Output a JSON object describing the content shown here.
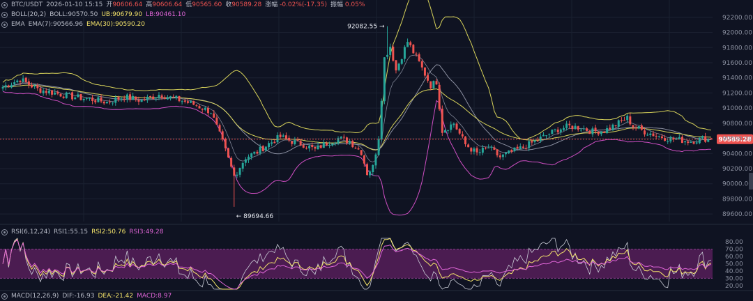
{
  "header": {
    "symbol": "BTC/USDT",
    "datetime": "2026-01-10 15:15",
    "open_label": "开",
    "open": "90606.64",
    "high_label": "高",
    "high": "90606.64",
    "low_label": "低",
    "low": "90565.60",
    "close_label": "收",
    "close": "90589.28",
    "change_label": "涨幅",
    "change": "-0.02%(-17.35)",
    "amp_label": "振幅",
    "amp": "0.05%"
  },
  "boll": {
    "name": "BOLL(20,2)",
    "mid": "BOLL:90570.50",
    "ub": "UB:90679.90",
    "lb": "LB:90461.10"
  },
  "ema": {
    "name": "EMA",
    "ema7": "EMA(7):90566.96",
    "ema30": "EMA(30):90590.20"
  },
  "rsi": {
    "name": "RSI(6,12,24)",
    "rsi1": "RSI1:55.15",
    "rsi2": "RSI2:50.76",
    "rsi3": "RSI3:49.28"
  },
  "macd": {
    "name": "MACD(12,26,9)",
    "dif": "DIF:-16.93",
    "dea": "DEA:-21.42",
    "macd": "MACD:8.97"
  },
  "colors": {
    "background": "#0f1322",
    "bull": "#26a69a",
    "bear": "#ef5350",
    "boll_band": "#d8d35a",
    "boll_lower": "#d04fc4",
    "ema_line": "#9aa0b2",
    "rsi_band": "#5a1f5e",
    "price_tag": "#ef5350"
  },
  "chart_data": [
    {
      "type": "candlestick",
      "title": "BTC/USDT",
      "ylim": [
        89500,
        92300
      ],
      "y_ticks": [
        "92200.00",
        "92000.00",
        "91800.00",
        "91600.00",
        "91400.00",
        "91200.00",
        "91000.00",
        "90800.00",
        "90600.00",
        "90400.00",
        "90200.00",
        "90000.00",
        "89800.00",
        "89600.00"
      ],
      "last_price": "90589.28",
      "annotations": [
        {
          "text": "92082.55 →",
          "price": 92082.55
        },
        {
          "text": "← 89694.66",
          "price": 89694.66
        }
      ],
      "anchors": [
        [
          0,
          91280
        ],
        [
          6,
          91380
        ],
        [
          12,
          91250
        ],
        [
          18,
          91200
        ],
        [
          24,
          91150
        ],
        [
          30,
          91120
        ],
        [
          36,
          91080
        ],
        [
          42,
          91150
        ],
        [
          48,
          91100
        ],
        [
          54,
          91180
        ],
        [
          60,
          91120
        ],
        [
          66,
          91050
        ],
        [
          72,
          90950
        ],
        [
          76,
          90550
        ],
        [
          80,
          90100
        ],
        [
          84,
          90350
        ],
        [
          88,
          90420
        ],
        [
          92,
          90530
        ],
        [
          96,
          90620
        ],
        [
          100,
          90560
        ],
        [
          104,
          90520
        ],
        [
          108,
          90450
        ],
        [
          112,
          90540
        ],
        [
          116,
          90600
        ],
        [
          120,
          90560
        ],
        [
          124,
          90420
        ],
        [
          126,
          90140
        ],
        [
          128,
          90220
        ],
        [
          130,
          90620
        ],
        [
          132,
          91660
        ],
        [
          134,
          91820
        ],
        [
          136,
          91500
        ],
        [
          140,
          91880
        ],
        [
          144,
          91600
        ],
        [
          148,
          91300
        ],
        [
          150,
          91350
        ],
        [
          152,
          90700
        ],
        [
          156,
          90800
        ],
        [
          160,
          90520
        ],
        [
          164,
          90400
        ],
        [
          168,
          90480
        ],
        [
          172,
          90350
        ],
        [
          176,
          90420
        ],
        [
          180,
          90480
        ],
        [
          184,
          90560
        ],
        [
          188,
          90640
        ],
        [
          192,
          90720
        ],
        [
          196,
          90760
        ],
        [
          200,
          90740
        ],
        [
          204,
          90690
        ],
        [
          208,
          90700
        ],
        [
          212,
          90780
        ],
        [
          216,
          90870
        ],
        [
          218,
          90760
        ],
        [
          222,
          90690
        ],
        [
          226,
          90640
        ],
        [
          230,
          90600
        ],
        [
          234,
          90580
        ],
        [
          238,
          90560
        ],
        [
          242,
          90600
        ],
        [
          245,
          90589
        ]
      ],
      "spikes": [
        {
          "index": 133,
          "high": 92082.55
        },
        {
          "index": 80,
          "low": 89694.66
        }
      ]
    },
    {
      "type": "line",
      "title": "RSI(6,12,24)",
      "ylim": [
        15,
        85
      ],
      "y_ticks": [
        "80.00",
        "70.00",
        "60.00",
        "50.00",
        "40.00",
        "30.00",
        "20.00"
      ],
      "band": [
        30,
        70
      ],
      "series": [
        {
          "name": "RSI1",
          "last": 55.15
        },
        {
          "name": "RSI2",
          "last": 50.76
        },
        {
          "name": "RSI3",
          "last": 49.28
        }
      ]
    }
  ]
}
